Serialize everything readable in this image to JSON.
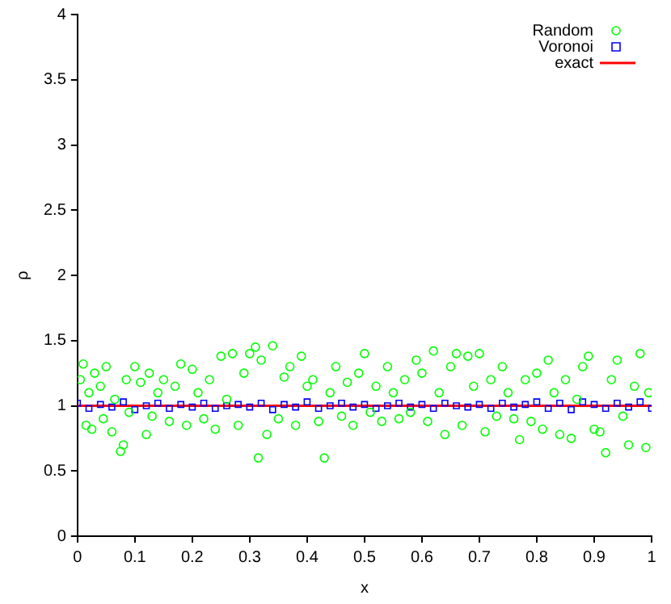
{
  "chart_data": {
    "type": "scatter",
    "xlabel": "x",
    "ylabel": "ρ",
    "xlim": [
      0,
      1
    ],
    "ylim": [
      0,
      4
    ],
    "xticks": [
      0,
      0.1,
      0.2,
      0.3,
      0.4,
      0.5,
      0.6,
      0.7,
      0.8,
      0.9,
      1
    ],
    "yticks": [
      0,
      0.5,
      1,
      1.5,
      2,
      2.5,
      3,
      3.5,
      4
    ],
    "grid": false,
    "legend": "top right",
    "series": [
      {
        "name": "Random",
        "color": "#00ff00",
        "marker": "circle",
        "x": [
          0.005,
          0.01,
          0.015,
          0.02,
          0.025,
          0.03,
          0.04,
          0.045,
          0.05,
          0.06,
          0.065,
          0.075,
          0.08,
          0.085,
          0.09,
          0.1,
          0.11,
          0.12,
          0.125,
          0.13,
          0.14,
          0.15,
          0.16,
          0.17,
          0.18,
          0.19,
          0.2,
          0.21,
          0.22,
          0.23,
          0.24,
          0.25,
          0.26,
          0.27,
          0.28,
          0.29,
          0.3,
          0.31,
          0.315,
          0.32,
          0.33,
          0.34,
          0.35,
          0.36,
          0.37,
          0.38,
          0.39,
          0.4,
          0.41,
          0.42,
          0.43,
          0.44,
          0.45,
          0.46,
          0.47,
          0.48,
          0.49,
          0.5,
          0.51,
          0.52,
          0.53,
          0.54,
          0.55,
          0.56,
          0.57,
          0.58,
          0.59,
          0.6,
          0.61,
          0.62,
          0.63,
          0.64,
          0.65,
          0.66,
          0.67,
          0.68,
          0.69,
          0.7,
          0.71,
          0.72,
          0.73,
          0.74,
          0.75,
          0.76,
          0.77,
          0.78,
          0.79,
          0.8,
          0.81,
          0.82,
          0.83,
          0.84,
          0.85,
          0.86,
          0.87,
          0.88,
          0.89,
          0.9,
          0.91,
          0.92,
          0.93,
          0.94,
          0.95,
          0.96,
          0.97,
          0.98,
          0.99,
          0.995
        ],
        "values": [
          1.2,
          1.32,
          0.85,
          1.1,
          0.82,
          1.25,
          1.15,
          0.9,
          1.3,
          0.8,
          1.05,
          0.65,
          0.7,
          1.2,
          0.95,
          1.3,
          1.18,
          0.78,
          1.25,
          0.92,
          1.1,
          1.2,
          0.88,
          1.15,
          1.32,
          0.85,
          1.28,
          1.1,
          0.9,
          1.2,
          0.82,
          1.38,
          1.05,
          1.4,
          0.85,
          1.25,
          1.4,
          1.45,
          0.6,
          1.35,
          0.78,
          1.46,
          0.9,
          1.22,
          1.3,
          0.85,
          1.38,
          1.15,
          1.2,
          0.88,
          0.6,
          1.1,
          1.3,
          0.92,
          1.18,
          0.85,
          1.25,
          1.4,
          0.95,
          1.15,
          0.88,
          1.3,
          1.1,
          0.9,
          1.2,
          0.95,
          1.35,
          1.25,
          0.88,
          1.42,
          1.1,
          0.78,
          1.3,
          1.4,
          0.85,
          1.38,
          1.15,
          1.4,
          0.8,
          1.2,
          0.92,
          1.3,
          1.1,
          0.9,
          0.74,
          1.2,
          0.88,
          1.25,
          0.82,
          1.35,
          1.1,
          0.78,
          1.2,
          0.75,
          1.05,
          1.3,
          1.38,
          0.82,
          0.8,
          0.64,
          1.2,
          1.35,
          0.92,
          0.7,
          1.15,
          1.4,
          0.68,
          1.1
        ]
      },
      {
        "name": "Voronoi",
        "color": "#0000ff",
        "marker": "square",
        "x": [
          0,
          0.02,
          0.04,
          0.06,
          0.08,
          0.1,
          0.12,
          0.14,
          0.16,
          0.18,
          0.2,
          0.22,
          0.24,
          0.26,
          0.28,
          0.3,
          0.32,
          0.34,
          0.36,
          0.38,
          0.4,
          0.42,
          0.44,
          0.46,
          0.48,
          0.5,
          0.52,
          0.54,
          0.56,
          0.58,
          0.6,
          0.62,
          0.64,
          0.66,
          0.68,
          0.7,
          0.72,
          0.74,
          0.76,
          0.78,
          0.8,
          0.82,
          0.84,
          0.86,
          0.88,
          0.9,
          0.92,
          0.94,
          0.96,
          0.98,
          1
        ],
        "values": [
          1.02,
          0.98,
          1.01,
          0.99,
          1.03,
          0.97,
          1.0,
          1.02,
          0.98,
          1.01,
          0.99,
          1.02,
          0.98,
          1.0,
          1.01,
          0.99,
          1.02,
          0.97,
          1.01,
          0.99,
          1.03,
          0.98,
          1.0,
          1.02,
          0.99,
          1.01,
          0.98,
          1.0,
          1.02,
          0.99,
          1.01,
          0.98,
          1.02,
          1.0,
          0.99,
          1.01,
          0.98,
          1.02,
          0.99,
          1.01,
          1.03,
          0.98,
          1.02,
          0.97,
          1.03,
          1.01,
          0.98,
          1.02,
          0.99,
          1.03,
          0.98
        ]
      },
      {
        "name": "exact",
        "color": "#ff0000",
        "type": "line",
        "marker": "none",
        "line_style": "solid",
        "x": [
          0,
          1
        ],
        "values": [
          1,
          1
        ]
      }
    ]
  }
}
